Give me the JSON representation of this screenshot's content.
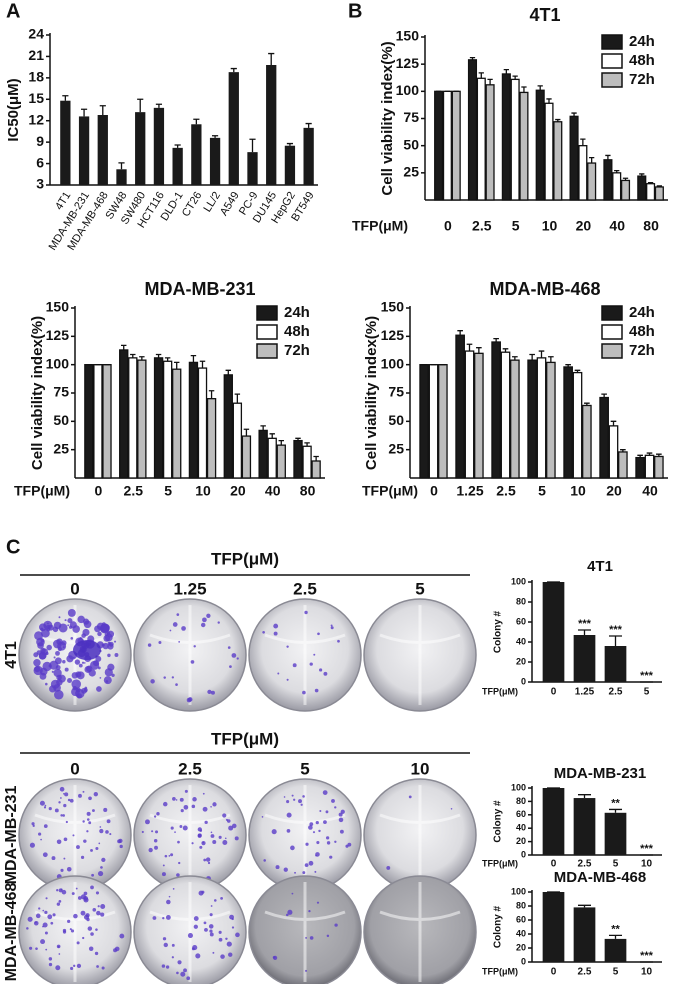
{
  "panel_labels": [
    "A",
    "B",
    "C"
  ],
  "chart_data": [
    {
      "type": "bar",
      "y_label": "IC50(μM)",
      "categories": [
        "4T1",
        "MDA-MB-231",
        "MDA-MB-468",
        "SW48",
        "SW480",
        "HCT116",
        "DLD-1",
        "CT26",
        "LL/2",
        "A549",
        "PC-9",
        "DU145",
        "HepG2",
        "BT549"
      ],
      "values": [
        14.8,
        12.6,
        12.8,
        5.2,
        13.2,
        13.8,
        8.2,
        11.5,
        9.6,
        18.8,
        7.6,
        19.8,
        8.5,
        11.0
      ],
      "errors": [
        0.7,
        1.0,
        1.3,
        0.9,
        1.8,
        0.5,
        0.4,
        0.7,
        0.3,
        0.5,
        1.8,
        1.6,
        0.3,
        0.6
      ],
      "color": "#1a1a1a",
      "ylim": [
        3,
        24
      ],
      "yticks": [
        3,
        6,
        9,
        12,
        15,
        18,
        21,
        24
      ]
    },
    {
      "type": "grouped",
      "title": "4T1",
      "y_label": "Cell viability index(%)",
      "x_label": "TFP(μM)",
      "categories": [
        "0",
        "2.5",
        "5",
        "10",
        "20",
        "40",
        "80"
      ],
      "series": [
        {
          "name": "24h",
          "color": "#1a1a1a",
          "values": [
            100,
            129,
            116,
            101,
            77,
            37,
            22
          ],
          "errors": [
            0,
            2,
            4,
            4,
            3,
            4,
            2
          ]
        },
        {
          "name": "48h",
          "color": "#ffffff",
          "values": [
            100,
            112,
            111,
            89,
            50,
            25,
            15
          ],
          "errors": [
            0,
            5,
            3,
            4,
            6,
            2,
            1
          ]
        },
        {
          "name": "72h",
          "color": "#bdbdbd",
          "values": [
            100,
            106,
            99,
            72,
            34,
            18,
            12
          ],
          "errors": [
            0,
            5,
            5,
            2,
            5,
            2,
            1
          ]
        }
      ],
      "ylim": [
        0,
        150
      ],
      "yticks": [
        25,
        50,
        75,
        100,
        125,
        150
      ]
    },
    {
      "type": "grouped",
      "title": "MDA-MB-231",
      "y_label": "Cell viability index(%)",
      "x_label": "TFP(μM)",
      "categories": [
        "0",
        "2.5",
        "5",
        "10",
        "20",
        "40",
        "80"
      ],
      "series": [
        {
          "name": "24h",
          "color": "#1a1a1a",
          "values": [
            100,
            113,
            106,
            102,
            91,
            42,
            33
          ],
          "errors": [
            0,
            4,
            3,
            6,
            4,
            4,
            2
          ]
        },
        {
          "name": "48h",
          "color": "#ffffff",
          "values": [
            100,
            106,
            103,
            97,
            66,
            35,
            28
          ],
          "errors": [
            0,
            3,
            3,
            6,
            8,
            4,
            3
          ]
        },
        {
          "name": "72h",
          "color": "#bdbdbd",
          "values": [
            100,
            104,
            96,
            70,
            37,
            29,
            15
          ],
          "errors": [
            0,
            3,
            6,
            7,
            6,
            4,
            4
          ]
        }
      ],
      "ylim": [
        0,
        150
      ],
      "yticks": [
        25,
        50,
        75,
        100,
        125,
        150
      ]
    },
    {
      "type": "grouped",
      "title": "MDA-MB-468",
      "y_label": "Cell viability index(%)",
      "x_label": "TFP(μM)",
      "categories": [
        "0",
        "1.25",
        "2.5",
        "5",
        "10",
        "20",
        "40"
      ],
      "series": [
        {
          "name": "24h",
          "color": "#1a1a1a",
          "values": [
            100,
            126,
            120,
            104,
            98,
            71,
            18
          ],
          "errors": [
            0,
            4,
            3,
            5,
            2,
            3,
            2
          ]
        },
        {
          "name": "48h",
          "color": "#ffffff",
          "values": [
            100,
            112,
            111,
            106,
            93,
            46,
            20
          ],
          "errors": [
            0,
            6,
            3,
            6,
            2,
            4,
            2
          ]
        },
        {
          "name": "72h",
          "color": "#bdbdbd",
          "values": [
            100,
            110,
            104,
            102,
            64,
            23,
            19
          ],
          "errors": [
            0,
            5,
            3,
            5,
            2,
            2,
            2
          ]
        }
      ],
      "ylim": [
        0,
        150
      ],
      "yticks": [
        25,
        50,
        75,
        100,
        125,
        150
      ]
    },
    {
      "type": "bar",
      "title": "4T1",
      "y_label": "Colony #",
      "x_label": "TFP(μM)",
      "categories": [
        "0",
        "1.25",
        "2.5",
        "5"
      ],
      "values": [
        100,
        47,
        36,
        0
      ],
      "errors": [
        0,
        5,
        10,
        0
      ],
      "annotations": [
        null,
        "***",
        "***",
        "***"
      ],
      "color": "#1a1a1a",
      "ylim": [
        0,
        100
      ],
      "yticks": [
        0,
        20,
        40,
        60,
        80,
        100
      ]
    },
    {
      "type": "bar",
      "title": "MDA-MB-231",
      "y_label": "Colony #",
      "x_label": "TFP(μM)",
      "categories": [
        "0",
        "2.5",
        "5",
        "10"
      ],
      "values": [
        100,
        85,
        63,
        0
      ],
      "errors": [
        0,
        5,
        5,
        0
      ],
      "annotations": [
        null,
        null,
        "**",
        "***"
      ],
      "color": "#1a1a1a",
      "ylim": [
        0,
        100
      ],
      "yticks": [
        0,
        20,
        40,
        60,
        80,
        100
      ]
    },
    {
      "type": "bar",
      "title": "MDA-MB-468",
      "y_label": "Colony #",
      "x_label": "TFP(μM)",
      "categories": [
        "0",
        "2.5",
        "5",
        "10"
      ],
      "values": [
        100,
        78,
        33,
        0
      ],
      "errors": [
        0,
        3,
        5,
        0
      ],
      "annotations": [
        null,
        null,
        "**",
        "***"
      ],
      "color": "#1a1a1a",
      "ylim": [
        0,
        100
      ],
      "yticks": [
        0,
        20,
        40,
        60,
        80,
        100
      ]
    }
  ],
  "photos": [
    {
      "header": "TFP(μM)",
      "doses": [
        "0",
        "1.25",
        "2.5",
        "5"
      ],
      "rows": [
        "4T1"
      ]
    },
    {
      "header": "TFP(μM)",
      "doses": [
        "0",
        "2.5",
        "5",
        "10"
      ],
      "rows": [
        "MDA-MB-231",
        "MDA-MB-468"
      ]
    }
  ]
}
